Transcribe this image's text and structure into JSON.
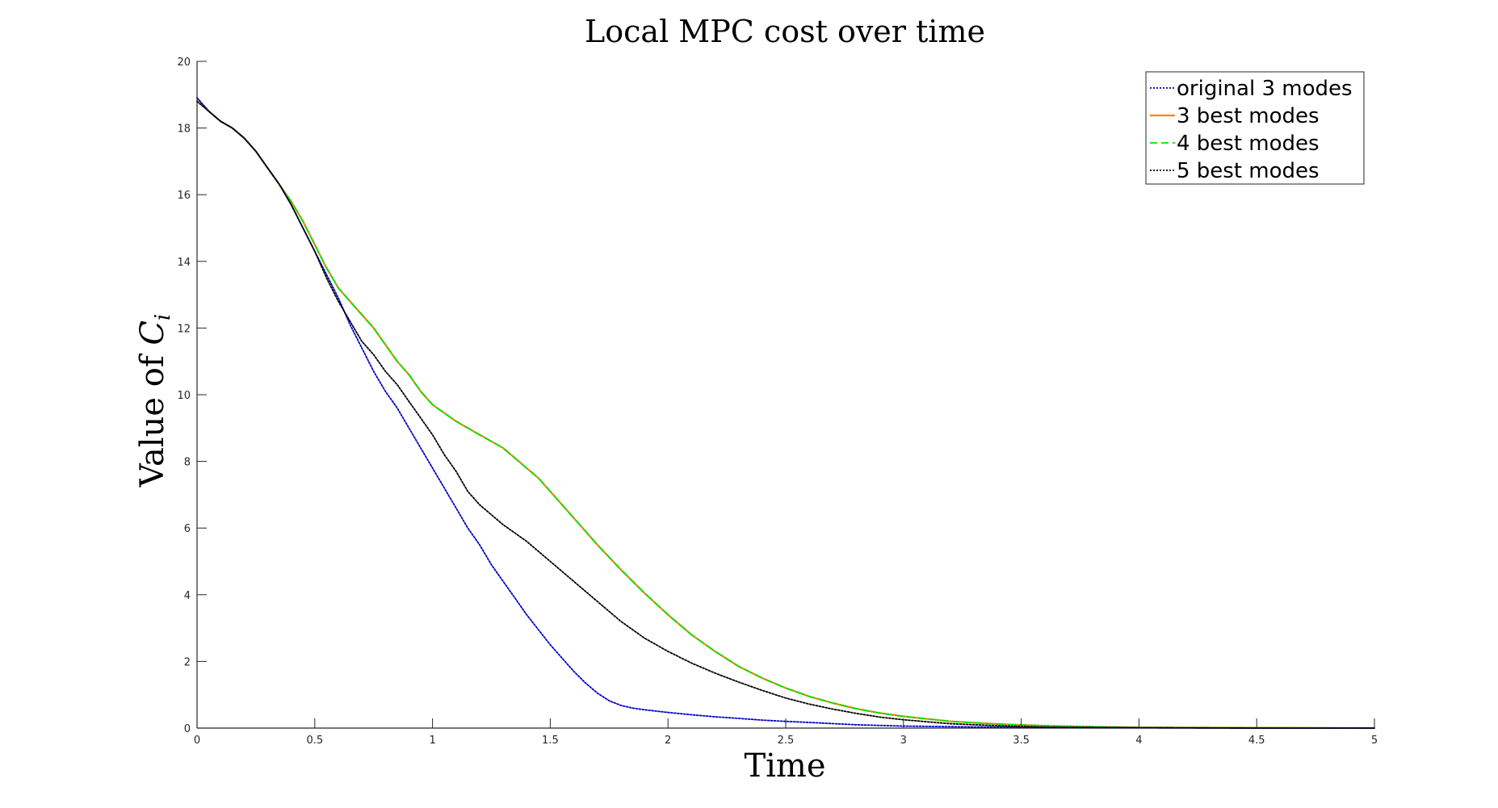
{
  "chart_data": {
    "type": "line",
    "title": "Local MPC cost over time",
    "xlabel": "Time",
    "ylabel_prefix": "Value of ",
    "ylabel_symbol": "C",
    "ylabel_subscript": "i",
    "xlim": [
      0,
      5
    ],
    "ylim": [
      0,
      20
    ],
    "xticks": [
      0,
      0.5,
      1,
      1.5,
      2,
      2.5,
      3,
      3.5,
      4,
      4.5,
      5
    ],
    "xtick_labels": [
      "0",
      "0.5",
      "1",
      "1.5",
      "2",
      "2.5",
      "3",
      "3.5",
      "4",
      "4.5",
      "5"
    ],
    "yticks": [
      0,
      2,
      4,
      6,
      8,
      10,
      12,
      14,
      16,
      18,
      20
    ],
    "ytick_labels": [
      "0",
      "2",
      "4",
      "6",
      "8",
      "10",
      "12",
      "14",
      "16",
      "18",
      "20"
    ],
    "grid": false,
    "legend_position": "top-right",
    "series": [
      {
        "name": "original 3 modes",
        "color": "#0000c8",
        "style": "dotted",
        "x": [
          0,
          0.05,
          0.1,
          0.15,
          0.2,
          0.25,
          0.3,
          0.35,
          0.4,
          0.45,
          0.5,
          0.55,
          0.6,
          0.65,
          0.7,
          0.75,
          0.8,
          0.85,
          0.9,
          0.95,
          1.0,
          1.05,
          1.1,
          1.15,
          1.2,
          1.25,
          1.3,
          1.35,
          1.4,
          1.45,
          1.5,
          1.55,
          1.6,
          1.65,
          1.7,
          1.75,
          1.8,
          1.85,
          1.9,
          2.0,
          2.1,
          2.2,
          2.3,
          2.4,
          2.5,
          2.6,
          2.8,
          3.0,
          3.2,
          3.5,
          4.0,
          4.5,
          5.0
        ],
        "y": [
          18.9,
          18.5,
          18.2,
          18.0,
          17.7,
          17.3,
          16.8,
          16.3,
          15.7,
          15.0,
          14.3,
          13.6,
          12.9,
          12.1,
          11.4,
          10.7,
          10.1,
          9.6,
          9.0,
          8.4,
          7.8,
          7.2,
          6.6,
          6.0,
          5.5,
          4.9,
          4.4,
          3.9,
          3.4,
          2.95,
          2.5,
          2.1,
          1.7,
          1.35,
          1.05,
          0.82,
          0.68,
          0.6,
          0.55,
          0.47,
          0.4,
          0.34,
          0.29,
          0.24,
          0.2,
          0.17,
          0.1,
          0.06,
          0.04,
          0.02,
          0.01,
          0.0,
          0.0
        ]
      },
      {
        "name": "3 best modes",
        "color": "#ff7f0e",
        "style": "solid",
        "x": [
          0,
          0.05,
          0.1,
          0.15,
          0.2,
          0.25,
          0.3,
          0.35,
          0.4,
          0.45,
          0.5,
          0.55,
          0.6,
          0.65,
          0.7,
          0.75,
          0.8,
          0.85,
          0.9,
          0.95,
          1.0,
          1.02,
          1.1,
          1.2,
          1.3,
          1.35,
          1.4,
          1.45,
          1.5,
          1.6,
          1.7,
          1.8,
          1.9,
          2.0,
          2.1,
          2.2,
          2.3,
          2.4,
          2.5,
          2.6,
          2.7,
          2.8,
          2.9,
          3.0,
          3.2,
          3.4,
          3.6,
          3.8,
          4.0,
          4.5,
          5.0
        ],
        "y": [
          18.9,
          18.5,
          18.2,
          18.0,
          17.7,
          17.3,
          16.8,
          16.3,
          15.8,
          15.2,
          14.5,
          13.8,
          13.2,
          12.8,
          12.4,
          12.0,
          11.5,
          11.0,
          10.6,
          10.1,
          9.7,
          9.6,
          9.2,
          8.8,
          8.4,
          8.1,
          7.8,
          7.5,
          7.1,
          6.3,
          5.5,
          4.75,
          4.05,
          3.4,
          2.8,
          2.3,
          1.85,
          1.5,
          1.2,
          0.95,
          0.75,
          0.58,
          0.45,
          0.35,
          0.2,
          0.12,
          0.07,
          0.04,
          0.02,
          0.01,
          0.0
        ]
      },
      {
        "name": "4 best modes",
        "color": "#00e600",
        "style": "dashed",
        "x": [
          0,
          0.05,
          0.1,
          0.15,
          0.2,
          0.25,
          0.3,
          0.35,
          0.4,
          0.45,
          0.5,
          0.55,
          0.6,
          0.65,
          0.7,
          0.75,
          0.8,
          0.85,
          0.9,
          0.95,
          1.0,
          1.02,
          1.1,
          1.2,
          1.3,
          1.35,
          1.4,
          1.45,
          1.5,
          1.6,
          1.7,
          1.8,
          1.9,
          2.0,
          2.1,
          2.2,
          2.3,
          2.4,
          2.5,
          2.6,
          2.7,
          2.8,
          2.9,
          3.0,
          3.2,
          3.4,
          3.6,
          3.8,
          4.0,
          4.5,
          5.0
        ],
        "y": [
          18.9,
          18.5,
          18.2,
          18.0,
          17.7,
          17.3,
          16.8,
          16.3,
          15.8,
          15.2,
          14.5,
          13.8,
          13.2,
          12.8,
          12.4,
          12.0,
          11.5,
          11.0,
          10.6,
          10.1,
          9.7,
          9.6,
          9.2,
          8.8,
          8.4,
          8.1,
          7.8,
          7.5,
          7.1,
          6.3,
          5.5,
          4.75,
          4.05,
          3.4,
          2.8,
          2.3,
          1.85,
          1.5,
          1.2,
          0.95,
          0.75,
          0.58,
          0.45,
          0.35,
          0.2,
          0.12,
          0.07,
          0.04,
          0.02,
          0.01,
          0.0
        ]
      },
      {
        "name": "5 best modes",
        "color": "#000000",
        "style": "dotted",
        "x": [
          0,
          0.05,
          0.1,
          0.15,
          0.2,
          0.25,
          0.3,
          0.35,
          0.4,
          0.45,
          0.5,
          0.55,
          0.6,
          0.65,
          0.7,
          0.75,
          0.8,
          0.85,
          0.9,
          0.95,
          1.0,
          1.05,
          1.1,
          1.15,
          1.2,
          1.25,
          1.3,
          1.35,
          1.4,
          1.45,
          1.5,
          1.6,
          1.7,
          1.8,
          1.9,
          2.0,
          2.1,
          2.2,
          2.3,
          2.4,
          2.5,
          2.6,
          2.7,
          2.8,
          2.9,
          3.0,
          3.2,
          3.4,
          3.6,
          3.8,
          4.0,
          4.5,
          5.0
        ],
        "y": [
          18.8,
          18.5,
          18.2,
          18.0,
          17.7,
          17.3,
          16.8,
          16.3,
          15.7,
          15.0,
          14.3,
          13.5,
          12.8,
          12.2,
          11.6,
          11.2,
          10.7,
          10.3,
          9.8,
          9.3,
          8.8,
          8.2,
          7.7,
          7.1,
          6.7,
          6.4,
          6.1,
          5.85,
          5.6,
          5.3,
          5.0,
          4.4,
          3.8,
          3.2,
          2.7,
          2.3,
          1.95,
          1.65,
          1.38,
          1.13,
          0.9,
          0.72,
          0.57,
          0.44,
          0.33,
          0.25,
          0.13,
          0.07,
          0.03,
          0.02,
          0.01,
          0.0,
          0.0
        ]
      }
    ]
  }
}
